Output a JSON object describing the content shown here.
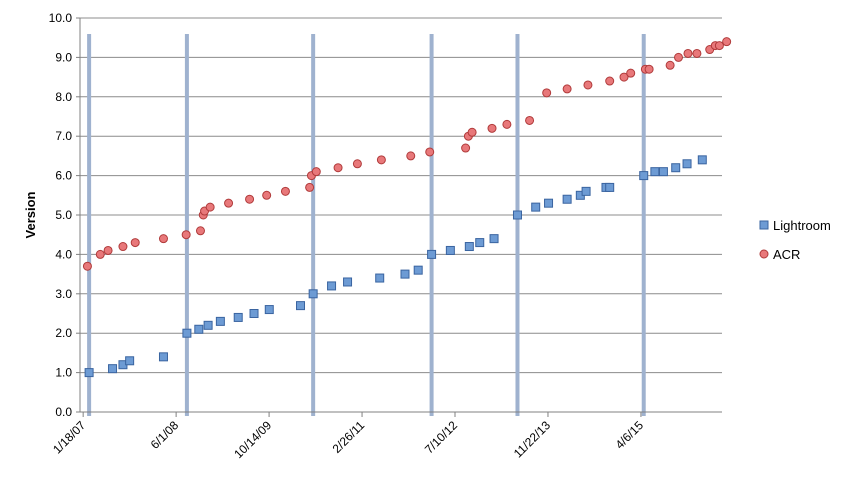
{
  "chart_data": {
    "type": "scatter",
    "title": "",
    "xlabel": "",
    "ylabel": "Version",
    "ylim": [
      0,
      10
    ],
    "x_range": [
      "2007-01-01",
      "2016-06-15"
    ],
    "x_tick_labels": [
      {
        "date": "2007-01-18",
        "label": "1/18/07"
      },
      {
        "date": "2008-06-01",
        "label": "6/1/08"
      },
      {
        "date": "2009-10-14",
        "label": "10/14/09"
      },
      {
        "date": "2011-02-26",
        "label": "2/26/11"
      },
      {
        "date": "2012-07-10",
        "label": "7/10/12"
      },
      {
        "date": "2013-11-22",
        "label": "11/22/13"
      },
      {
        "date": "2015-04-06",
        "label": "4/6/15"
      }
    ],
    "y_ticks": [
      "0.0",
      "1.0",
      "2.0",
      "3.0",
      "4.0",
      "5.0",
      "6.0",
      "7.0",
      "8.0",
      "9.0",
      "10.0"
    ],
    "grid": "horizontal",
    "legend_position": "right",
    "major_release_dates": [
      "2007-02-19",
      "2008-07-29",
      "2010-06-08",
      "2012-03-06",
      "2013-06-11",
      "2015-04-21"
    ],
    "series": [
      {
        "name": "Lightroom",
        "marker": "square",
        "color": "#4f81bd",
        "points": [
          [
            "2007-02-19",
            1.0
          ],
          [
            "2007-06-25",
            1.1
          ],
          [
            "2007-08-20",
            1.2
          ],
          [
            "2007-09-25",
            1.3
          ],
          [
            "2008-03-25",
            1.4
          ],
          [
            "2008-07-29",
            2.0
          ],
          [
            "2008-10-01",
            2.1
          ],
          [
            "2008-11-20",
            2.2
          ],
          [
            "2009-01-25",
            2.3
          ],
          [
            "2009-05-01",
            2.4
          ],
          [
            "2009-07-25",
            2.5
          ],
          [
            "2009-10-15",
            2.6
          ],
          [
            "2010-04-01",
            2.7
          ],
          [
            "2010-06-08",
            3.0
          ],
          [
            "2010-09-15",
            3.2
          ],
          [
            "2010-12-10",
            3.3
          ],
          [
            "2011-06-01",
            3.4
          ],
          [
            "2011-10-15",
            3.5
          ],
          [
            "2011-12-25",
            3.6
          ],
          [
            "2012-03-06",
            4.0
          ],
          [
            "2012-06-15",
            4.1
          ],
          [
            "2012-09-25",
            4.2
          ],
          [
            "2012-11-20",
            4.3
          ],
          [
            "2013-02-05",
            4.4
          ],
          [
            "2013-06-11",
            5.0
          ],
          [
            "2013-09-17",
            5.2
          ],
          [
            "2013-11-25",
            5.3
          ],
          [
            "2014-03-05",
            5.4
          ],
          [
            "2014-05-15",
            5.5
          ],
          [
            "2014-06-15",
            5.6
          ],
          [
            "2014-09-30",
            5.7
          ],
          [
            "2014-10-20",
            5.7
          ],
          [
            "2015-04-21",
            6.0
          ],
          [
            "2015-06-20",
            6.1
          ],
          [
            "2015-08-05",
            6.1
          ],
          [
            "2015-10-10",
            6.2
          ],
          [
            "2015-12-10",
            6.3
          ],
          [
            "2016-03-01",
            6.4
          ]
        ]
      },
      {
        "name": "ACR",
        "marker": "circle",
        "color": "#e06666",
        "points": [
          [
            "2007-02-10",
            3.7
          ],
          [
            "2007-04-20",
            4.0
          ],
          [
            "2007-06-01",
            4.1
          ],
          [
            "2007-08-20",
            4.2
          ],
          [
            "2007-10-25",
            4.3
          ],
          [
            "2008-03-25",
            4.4
          ],
          [
            "2008-07-25",
            4.5
          ],
          [
            "2008-10-10",
            4.6
          ],
          [
            "2008-10-25",
            5.0
          ],
          [
            "2008-11-01",
            5.1
          ],
          [
            "2008-12-01",
            5.2
          ],
          [
            "2009-03-10",
            5.3
          ],
          [
            "2009-07-01",
            5.4
          ],
          [
            "2009-10-01",
            5.5
          ],
          [
            "2010-01-10",
            5.6
          ],
          [
            "2010-05-20",
            5.7
          ],
          [
            "2010-05-30",
            6.0
          ],
          [
            "2010-06-25",
            6.1
          ],
          [
            "2010-10-20",
            6.2
          ],
          [
            "2011-02-01",
            6.3
          ],
          [
            "2011-06-10",
            6.4
          ],
          [
            "2011-11-15",
            6.5
          ],
          [
            "2012-02-25",
            6.6
          ],
          [
            "2012-09-05",
            6.7
          ],
          [
            "2012-09-20",
            7.0
          ],
          [
            "2012-10-10",
            7.1
          ],
          [
            "2013-01-25",
            7.2
          ],
          [
            "2013-04-15",
            7.3
          ],
          [
            "2013-08-15",
            7.4
          ],
          [
            "2013-11-15",
            8.1
          ],
          [
            "2014-03-05",
            8.2
          ],
          [
            "2014-06-25",
            8.3
          ],
          [
            "2014-10-20",
            8.4
          ],
          [
            "2015-01-05",
            8.5
          ],
          [
            "2015-02-10",
            8.6
          ],
          [
            "2015-04-30",
            8.7
          ],
          [
            "2015-05-20",
            8.7
          ],
          [
            "2015-09-10",
            8.8
          ],
          [
            "2015-10-25",
            9.0
          ],
          [
            "2015-12-15",
            9.1
          ],
          [
            "2016-02-01",
            9.1
          ],
          [
            "2016-04-10",
            9.2
          ],
          [
            "2016-05-10",
            9.3
          ],
          [
            "2016-06-01",
            9.3
          ],
          [
            "2016-07-10",
            9.4
          ]
        ]
      }
    ]
  }
}
